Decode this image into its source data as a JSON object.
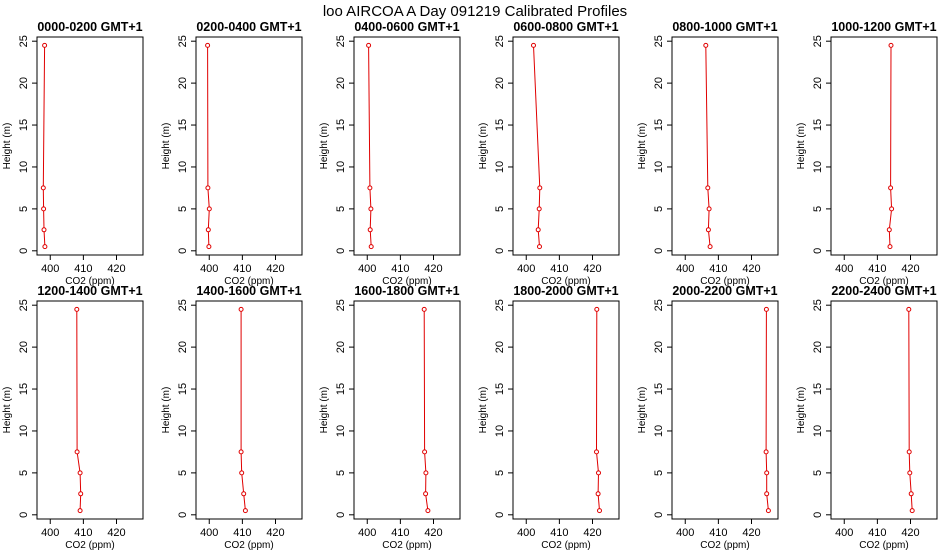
{
  "title": "loo AIRCOA A  Day 091219  Calibrated Profiles",
  "colors": {
    "series": "#e00000",
    "axes": "#000000",
    "background": "#ffffff"
  },
  "chart_data": {
    "type": "line",
    "layout": "2 rows x 6 panels",
    "shared": {
      "xlabel": "CO2 (ppm)",
      "ylabel": "Height (m)",
      "xlim": [
        396,
        428
      ],
      "ylim": [
        -0.5,
        25.5
      ],
      "xticks": [
        400,
        410,
        420
      ],
      "yticks": [
        0,
        5,
        10,
        15,
        20,
        25
      ],
      "heights": [
        0.5,
        2.5,
        5,
        7.5,
        24.5
      ],
      "grid": false,
      "legend": "none"
    },
    "panels": [
      {
        "title": "0000-0200 GMT+1",
        "co2": [
          398.4,
          398.1,
          398.0,
          397.9,
          398.3
        ]
      },
      {
        "title": "0200-0400 GMT+1",
        "co2": [
          399.9,
          399.7,
          400.0,
          399.6,
          399.5
        ]
      },
      {
        "title": "0400-0600 GMT+1",
        "co2": [
          401.2,
          400.9,
          401.1,
          400.8,
          400.4
        ]
      },
      {
        "title": "0600-0800 GMT+1",
        "co2": [
          404.0,
          403.6,
          403.9,
          404.1,
          402.2
        ]
      },
      {
        "title": "0800-1000 GMT+1",
        "co2": [
          407.5,
          407.0,
          407.2,
          406.8,
          406.2
        ]
      },
      {
        "title": "1000-1200 GMT+1",
        "co2": [
          413.8,
          413.6,
          414.3,
          414.0,
          414.1
        ]
      },
      {
        "title": "1200-1400 GMT+1",
        "co2": [
          409.0,
          409.2,
          409.0,
          408.1,
          408.0
        ]
      },
      {
        "title": "1400-1600 GMT+1",
        "co2": [
          410.9,
          410.4,
          409.8,
          409.6,
          409.6
        ]
      },
      {
        "title": "1600-1800 GMT+1",
        "co2": [
          418.3,
          417.6,
          417.7,
          417.3,
          417.2
        ]
      },
      {
        "title": "1800-2000 GMT+1",
        "co2": [
          422.1,
          421.7,
          421.8,
          421.2,
          421.3
        ]
      },
      {
        "title": "2000-2200 GMT+1",
        "co2": [
          425.1,
          424.6,
          424.6,
          424.4,
          424.5
        ]
      },
      {
        "title": "2200-2400 GMT+1",
        "co2": [
          420.5,
          420.2,
          419.8,
          419.6,
          419.5
        ]
      }
    ]
  }
}
